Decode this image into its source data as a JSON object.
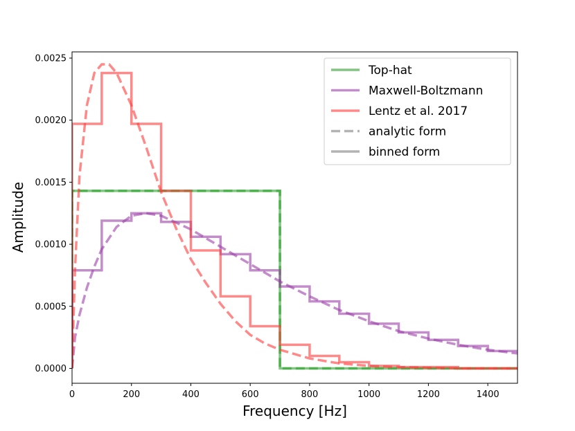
{
  "chart_data": {
    "type": "line",
    "title": "",
    "xlabel": "Frequency [Hz]",
    "ylabel": "Amplitude",
    "xlim": [
      0,
      1500
    ],
    "ylim": [
      -0.00012,
      0.00255
    ],
    "xticks": [
      0,
      200,
      400,
      600,
      800,
      1000,
      1200,
      1400
    ],
    "xtick_labels": [
      "0",
      "200",
      "400",
      "600",
      "800",
      "1000",
      "1200",
      "1400"
    ],
    "yticks": [
      0.0,
      0.0005,
      0.001,
      0.0015,
      0.002,
      0.0025
    ],
    "ytick_labels": [
      "0.0000",
      "0.0005",
      "0.0010",
      "0.0015",
      "0.0020",
      "0.0025"
    ],
    "legend_position": "top-right",
    "legend": [
      {
        "label": "Top-hat",
        "color": "#2ca02c",
        "style": "solid"
      },
      {
        "label": "Maxwell-Boltzmann",
        "color": "#9b3fa6",
        "style": "solid"
      },
      {
        "label": "Lentz et al. 2017",
        "color": "#ff3b3b",
        "style": "solid"
      },
      {
        "label": "analytic form",
        "color": "#808080",
        "style": "dashed"
      },
      {
        "label": "binned form",
        "color": "#808080",
        "style": "solid"
      }
    ],
    "series": [
      {
        "name": "Top-hat",
        "color": "#2ca02c",
        "binned": {
          "edges": [
            0,
            700,
            1500
          ],
          "values": [
            0.00143,
            0.0
          ]
        },
        "analytic": {
          "x": [
            0,
            0,
            700,
            700,
            1500
          ],
          "y": [
            0,
            0.00143,
            0.00143,
            0.0,
            0.0
          ]
        }
      },
      {
        "name": "Maxwell-Boltzmann",
        "color": "#9b3fa6",
        "binned": {
          "edges": [
            0,
            100,
            200,
            300,
            400,
            500,
            600,
            700,
            800,
            900,
            1000,
            1100,
            1200,
            1300,
            1400,
            1500
          ],
          "values": [
            0.00079,
            0.00119,
            0.00125,
            0.00118,
            0.00106,
            0.00092,
            0.00079,
            0.00066,
            0.00054,
            0.00044,
            0.00036,
            0.00029,
            0.00023,
            0.00018,
            0.00014
          ]
        },
        "analytic": {
          "x": [
            0,
            10,
            25,
            50,
            75,
            100,
            150,
            200,
            250,
            300,
            400,
            500,
            600,
            700,
            800,
            900,
            1000,
            1100,
            1200,
            1300,
            1400,
            1500
          ],
          "y": [
            0.0,
            0.00025,
            0.00043,
            0.00065,
            0.00082,
            0.00096,
            0.00114,
            0.00123,
            0.00125,
            0.00123,
            0.00112,
            0.00098,
            0.00084,
            0.0007,
            0.00058,
            0.00047,
            0.00038,
            0.0003,
            0.00024,
            0.00019,
            0.00015,
            0.00012
          ]
        }
      },
      {
        "name": "Lentz et al. 2017",
        "color": "#ff3b3b",
        "binned": {
          "edges": [
            0,
            100,
            200,
            300,
            400,
            500,
            600,
            700,
            800,
            900,
            1000,
            1100,
            1200,
            1300,
            1400,
            1500
          ],
          "values": [
            0.00197,
            0.00238,
            0.00197,
            0.00143,
            0.00095,
            0.00058,
            0.00034,
            0.00019,
            0.0001,
            5e-05,
            2e-05,
            1e-05,
            1e-05,
            0.0,
            0.0
          ]
        },
        "analytic": {
          "x": [
            0,
            10,
            25,
            50,
            75,
            100,
            125,
            150,
            200,
            250,
            300,
            350,
            400,
            450,
            500,
            550,
            600,
            650,
            700,
            800,
            900,
            1000,
            1100,
            1200,
            1300,
            1400,
            1500
          ],
          "y": [
            0.0,
            0.0008,
            0.00155,
            0.00212,
            0.00238,
            0.00245,
            0.00245,
            0.00238,
            0.00212,
            0.00178,
            0.00142,
            0.00113,
            0.00088,
            0.00069,
            0.00052,
            0.00038,
            0.00027,
            0.0002,
            0.00015,
            8e-05,
            4e-05,
            2e-05,
            1e-05,
            5e-06,
            0.0,
            0.0,
            0.0
          ]
        }
      }
    ]
  }
}
